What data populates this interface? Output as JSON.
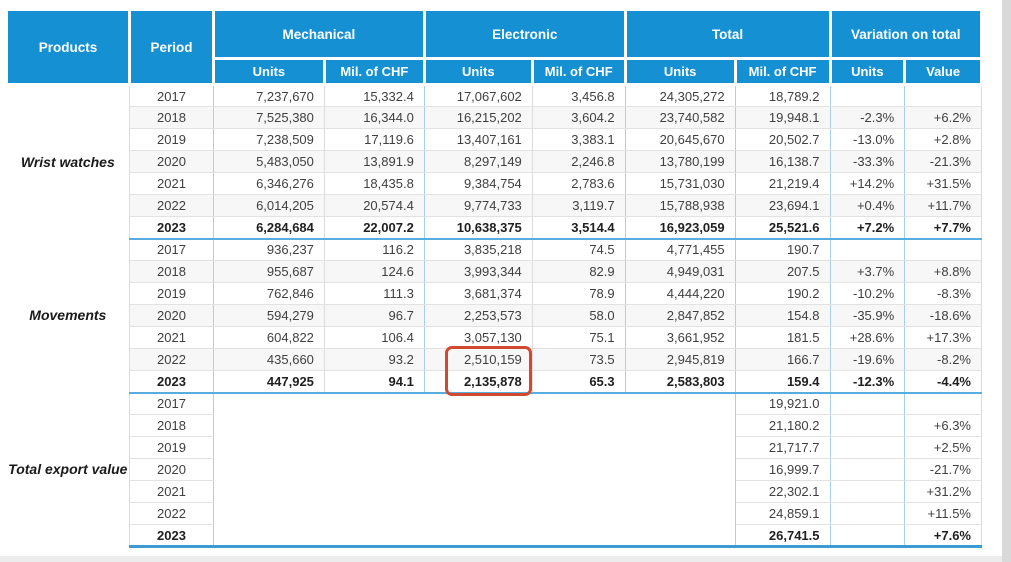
{
  "table": {
    "header": {
      "products": "Products",
      "period": "Period",
      "groups": [
        {
          "label": "Mechanical",
          "sub": [
            "Units",
            "Mil. of CHF"
          ]
        },
        {
          "label": "Electronic",
          "sub": [
            "Units",
            "Mil. of CHF"
          ]
        },
        {
          "label": "Total",
          "sub": [
            "Units",
            "Mil. of CHF"
          ]
        },
        {
          "label": "Variation on total",
          "sub": [
            "Units",
            "Value"
          ]
        }
      ]
    },
    "sections": [
      {
        "product": "Wrist watches",
        "blank_cols": [],
        "rows": [
          {
            "period": "2017",
            "cells": [
              "7,237,670",
              "15,332.4",
              "17,067,602",
              "3,456.8",
              "24,305,272",
              "18,789.2",
              "",
              ""
            ]
          },
          {
            "period": "2018",
            "cells": [
              "7,525,380",
              "16,344.0",
              "16,215,202",
              "3,604.2",
              "23,740,582",
              "19,948.1",
              "-2.3%",
              "+6.2%"
            ]
          },
          {
            "period": "2019",
            "cells": [
              "7,238,509",
              "17,119.6",
              "13,407,161",
              "3,383.1",
              "20,645,670",
              "20,502.7",
              "-13.0%",
              "+2.8%"
            ]
          },
          {
            "period": "2020",
            "cells": [
              "5,483,050",
              "13,891.9",
              "8,297,149",
              "2,246.8",
              "13,780,199",
              "16,138.7",
              "-33.3%",
              "-21.3%"
            ]
          },
          {
            "period": "2021",
            "cells": [
              "6,346,276",
              "18,435.8",
              "9,384,754",
              "2,783.6",
              "15,731,030",
              "21,219.4",
              "+14.2%",
              "+31.5%"
            ]
          },
          {
            "period": "2022",
            "cells": [
              "6,014,205",
              "20,574.4",
              "9,774,733",
              "3,119.7",
              "15,788,938",
              "23,694.1",
              "+0.4%",
              "+11.7%"
            ]
          },
          {
            "period": "2023",
            "cells": [
              "6,284,684",
              "22,007.2",
              "10,638,375",
              "3,514.4",
              "16,923,059",
              "25,521.6",
              "+7.2%",
              "+7.7%"
            ]
          }
        ]
      },
      {
        "product": "Movements",
        "blank_cols": [],
        "rows": [
          {
            "period": "2017",
            "cells": [
              "936,237",
              "116.2",
              "3,835,218",
              "74.5",
              "4,771,455",
              "190.7",
              "",
              ""
            ]
          },
          {
            "period": "2018",
            "cells": [
              "955,687",
              "124.6",
              "3,993,344",
              "82.9",
              "4,949,031",
              "207.5",
              "+3.7%",
              "+8.8%"
            ]
          },
          {
            "period": "2019",
            "cells": [
              "762,846",
              "111.3",
              "3,681,374",
              "78.9",
              "4,444,220",
              "190.2",
              "-10.2%",
              "-8.3%"
            ]
          },
          {
            "period": "2020",
            "cells": [
              "594,279",
              "96.7",
              "2,253,573",
              "58.0",
              "2,847,852",
              "154.8",
              "-35.9%",
              "-18.6%"
            ]
          },
          {
            "period": "2021",
            "cells": [
              "604,822",
              "106.4",
              "3,057,130",
              "75.1",
              "3,661,952",
              "181.5",
              "+28.6%",
              "+17.3%"
            ]
          },
          {
            "period": "2022",
            "cells": [
              "435,660",
              "93.2",
              "2,510,159",
              "73.5",
              "2,945,819",
              "166.7",
              "-19.6%",
              "-8.2%"
            ]
          },
          {
            "period": "2023",
            "cells": [
              "447,925",
              "94.1",
              "2,135,878",
              "65.3",
              "2,583,803",
              "159.4",
              "-12.3%",
              "-4.4%"
            ]
          }
        ]
      },
      {
        "product": "Total export value",
        "blank_cols": [
          0,
          1,
          2,
          3,
          4
        ],
        "rows": [
          {
            "period": "2017",
            "cells": [
              "",
              "",
              "",
              "",
              "",
              "19,921.0",
              "",
              ""
            ]
          },
          {
            "period": "2018",
            "cells": [
              "",
              "",
              "",
              "",
              "",
              "21,180.2",
              "",
              "+6.3%"
            ]
          },
          {
            "period": "2019",
            "cells": [
              "",
              "",
              "",
              "",
              "",
              "21,717.7",
              "",
              "+2.5%"
            ]
          },
          {
            "period": "2020",
            "cells": [
              "",
              "",
              "",
              "",
              "",
              "16,999.7",
              "",
              "-21.7%"
            ]
          },
          {
            "period": "2021",
            "cells": [
              "",
              "",
              "",
              "",
              "",
              "22,302.1",
              "",
              "+31.2%"
            ]
          },
          {
            "period": "2022",
            "cells": [
              "",
              "",
              "",
              "",
              "",
              "24,859.1",
              "",
              "+11.5%"
            ]
          },
          {
            "period": "2023",
            "cells": [
              "",
              "",
              "",
              "",
              "",
              "26,741.5",
              "",
              "+7.6%"
            ]
          }
        ]
      }
    ],
    "highlight": {
      "shape": "red-rounded-box",
      "color": "#d1492e",
      "marks": [
        "2,510,159",
        "2,135,878"
      ],
      "location": "Movements / Electronic Units / 2022-2023"
    }
  },
  "colors": {
    "header_bg": "#1591d3",
    "header_text": "#ffffff",
    "section_divider": "#58ade0",
    "table_bottom_border": "#3d9bd3",
    "highlight_border": "#d1492e"
  }
}
